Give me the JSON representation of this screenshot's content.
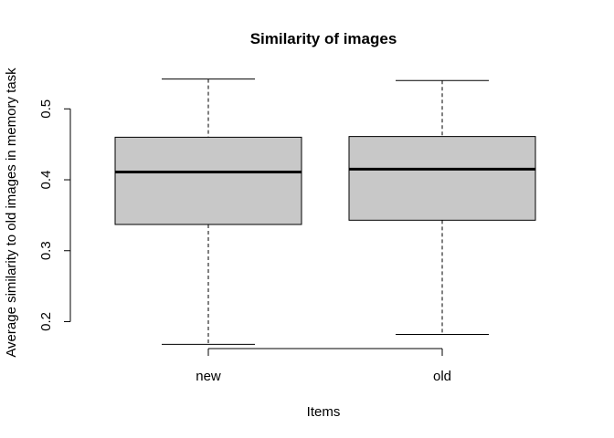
{
  "chart_data": {
    "type": "boxplot",
    "title": "Similarity of images",
    "xlabel": "Items",
    "ylabel": "Average similarity to old images in memory task",
    "categories": [
      "new",
      "old"
    ],
    "yticks": [
      "0.2",
      "0.3",
      "0.4",
      "0.5"
    ],
    "ylim": [
      0.153,
      0.557
    ],
    "box_fill": "#c8c8c8",
    "boxes": [
      {
        "label": "new",
        "whisker_low": 0.168,
        "q1": 0.337,
        "median": 0.411,
        "q3": 0.46,
        "whisker_high": 0.542
      },
      {
        "label": "old",
        "whisker_low": 0.182,
        "q1": 0.343,
        "median": 0.415,
        "q3": 0.461,
        "whisker_high": 0.54
      }
    ],
    "grid": false,
    "legend": "none"
  }
}
